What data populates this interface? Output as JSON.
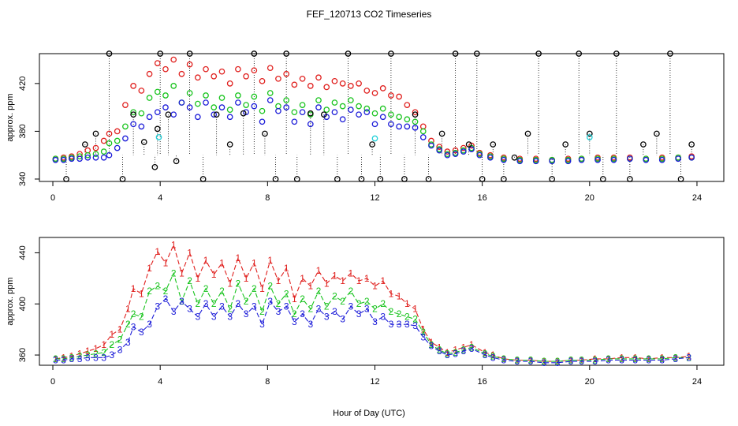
{
  "figure": {
    "title": "FEF_120713  CO2 Timeseries",
    "xlabel": "Hour of Day (UTC)"
  },
  "chart_data": [
    {
      "type": "scatter",
      "panel": "top",
      "title": "",
      "xlabel": "",
      "ylabel": "approx. ppm",
      "xlim": [
        -0.5,
        25
      ],
      "ylim": [
        338,
        445
      ],
      "xticks": [
        0,
        4,
        8,
        12,
        16,
        20,
        24
      ],
      "yticks": [
        340,
        380,
        420
      ],
      "series": [
        {
          "color": "#e0201e",
          "marker": "circle",
          "x": [
            0.1,
            0.4,
            0.7,
            1.0,
            1.3,
            1.6,
            1.9,
            2.1,
            2.4,
            2.7,
            3.0,
            3.3,
            3.6,
            3.9,
            4.2,
            4.5,
            4.8,
            5.1,
            5.4,
            5.7,
            6.0,
            6.3,
            6.6,
            6.9,
            7.2,
            7.5,
            7.8,
            8.1,
            8.4,
            8.7,
            9.0,
            9.3,
            9.6,
            9.9,
            10.2,
            10.5,
            10.8,
            11.1,
            11.4,
            11.7,
            12.0,
            12.3,
            12.6,
            12.9,
            13.2,
            13.5,
            13.8,
            14.1,
            14.4,
            14.7,
            15.0,
            15.3,
            15.6,
            15.9,
            16.3,
            16.8,
            17.4,
            18.0,
            18.6,
            19.2,
            19.7,
            20.3,
            20.9,
            21.5,
            22.1,
            22.7,
            23.3,
            23.8
          ],
          "y": [
            357,
            358,
            359,
            361,
            364,
            366,
            372,
            378,
            380,
            402,
            418,
            414,
            428,
            437,
            432,
            440,
            428,
            436,
            425,
            432,
            426,
            430,
            420,
            432,
            426,
            431,
            422,
            433,
            424,
            428,
            419,
            424,
            418,
            425,
            417,
            422,
            420,
            418,
            420,
            414,
            412,
            416,
            410,
            409,
            402,
            396,
            384,
            372,
            367,
            363,
            364,
            366,
            368,
            362,
            360,
            358,
            357,
            357,
            356,
            357,
            357,
            358,
            358,
            358,
            357,
            358,
            358,
            359
          ]
        },
        {
          "color": "#19c41e",
          "marker": "circle",
          "x": [
            0.1,
            0.4,
            0.7,
            1.0,
            1.3,
            1.6,
            1.9,
            2.1,
            2.4,
            2.7,
            3.0,
            3.3,
            3.6,
            3.9,
            4.2,
            4.5,
            4.8,
            5.1,
            5.4,
            5.7,
            6.0,
            6.3,
            6.6,
            6.9,
            7.2,
            7.5,
            7.8,
            8.1,
            8.4,
            8.7,
            9.0,
            9.3,
            9.6,
            9.9,
            10.2,
            10.5,
            10.8,
            11.1,
            11.4,
            11.7,
            12.0,
            12.3,
            12.6,
            12.9,
            13.2,
            13.5,
            13.8,
            14.1,
            14.4,
            14.7,
            15.0,
            15.3,
            15.6,
            15.9,
            16.3,
            16.8,
            17.4,
            18.0,
            18.6,
            19.2,
            19.7,
            20.3,
            20.9,
            21.5,
            22.1,
            22.7,
            23.3,
            23.8
          ],
          "y": [
            357,
            357,
            358,
            359,
            360,
            361,
            363,
            370,
            372,
            384,
            396,
            395,
            408,
            413,
            410,
            418,
            404,
            412,
            403,
            410,
            400,
            408,
            398,
            410,
            402,
            409,
            397,
            412,
            401,
            406,
            396,
            402,
            394,
            406,
            398,
            404,
            401,
            406,
            401,
            399,
            395,
            399,
            394,
            392,
            390,
            388,
            380,
            369,
            365,
            361,
            362,
            364,
            366,
            361,
            359,
            357,
            356,
            356,
            356,
            356,
            357,
            357,
            357,
            357,
            357,
            357,
            358,
            358
          ]
        },
        {
          "color": "#1c1cd8",
          "marker": "circle",
          "x": [
            0.1,
            0.4,
            0.7,
            1.0,
            1.3,
            1.6,
            1.9,
            2.1,
            2.4,
            2.7,
            3.0,
            3.3,
            3.6,
            3.9,
            4.2,
            4.5,
            4.8,
            5.1,
            5.4,
            5.7,
            6.0,
            6.3,
            6.6,
            6.9,
            7.2,
            7.5,
            7.8,
            8.1,
            8.4,
            8.7,
            9.0,
            9.3,
            9.6,
            9.9,
            10.2,
            10.5,
            10.8,
            11.1,
            11.4,
            11.7,
            12.0,
            12.3,
            12.6,
            12.9,
            13.2,
            13.5,
            13.8,
            14.1,
            14.4,
            14.7,
            15.0,
            15.3,
            15.6,
            15.9,
            16.3,
            16.8,
            17.4,
            18.0,
            18.6,
            19.2,
            19.7,
            20.3,
            20.9,
            21.5,
            22.1,
            22.7,
            23.3,
            23.8
          ],
          "y": [
            356,
            356,
            357,
            357,
            358,
            358,
            358,
            360,
            366,
            374,
            386,
            384,
            392,
            396,
            400,
            394,
            404,
            400,
            392,
            404,
            394,
            400,
            392,
            404,
            396,
            401,
            388,
            406,
            397,
            400,
            388,
            396,
            386,
            400,
            392,
            396,
            390,
            398,
            394,
            396,
            386,
            392,
            386,
            384,
            384,
            383,
            375,
            368,
            364,
            360,
            361,
            363,
            365,
            360,
            358,
            356,
            355,
            355,
            355,
            355,
            356,
            356,
            356,
            357,
            356,
            356,
            357,
            358
          ]
        },
        {
          "color": "#000000",
          "marker": "circle",
          "x": [
            0.5,
            1.2,
            1.6,
            2.1,
            2.6,
            3.0,
            3.4,
            3.8,
            3.9,
            4.0,
            4.3,
            4.6,
            5.1,
            5.6,
            6.1,
            6.6,
            7.1,
            7.5,
            7.9,
            8.3,
            8.7,
            9.1,
            9.6,
            10.1,
            10.6,
            11.0,
            11.5,
            11.9,
            12.2,
            12.6,
            13.1,
            13.5,
            14.0,
            14.5,
            15.0,
            15.5,
            15.8,
            16.0,
            16.4,
            16.8,
            17.2,
            17.7,
            18.1,
            18.6,
            19.1,
            19.6,
            20.0,
            20.5,
            21.0,
            21.5,
            22.0,
            22.5,
            23.0,
            23.4,
            23.8
          ],
          "y": [
            340,
            369,
            378,
            445,
            340,
            394,
            371,
            350,
            382,
            445,
            394,
            355,
            445,
            340,
            394,
            369,
            395,
            445,
            378,
            340,
            445,
            340,
            395,
            394,
            340,
            445,
            340,
            369,
            340,
            445,
            340,
            394,
            340,
            378,
            445,
            369,
            445,
            340,
            369,
            340,
            358,
            378,
            445,
            340,
            369,
            445,
            378,
            340,
            445,
            340,
            369,
            378,
            445,
            340,
            369
          ]
        },
        {
          "color": "#22d0d8",
          "marker": "circle",
          "x": [
            3.95,
            12.0,
            20.0
          ],
          "y": [
            375,
            374,
            375
          ]
        }
      ]
    },
    {
      "type": "line",
      "panel": "bottom",
      "title": "",
      "xlabel": "Hour of Day (UTC)",
      "ylabel": "approx. ppm",
      "xlim": [
        -0.5,
        25
      ],
      "ylim": [
        352,
        452
      ],
      "xticks": [
        0,
        4,
        8,
        12,
        16,
        20,
        24
      ],
      "yticks": [
        360,
        400,
        440
      ],
      "series": [
        {
          "name": "1",
          "color": "#e0201e",
          "x": [
            0.1,
            0.4,
            0.7,
            1.0,
            1.3,
            1.6,
            1.9,
            2.2,
            2.5,
            2.8,
            3.0,
            3.3,
            3.6,
            3.9,
            4.2,
            4.5,
            4.8,
            5.1,
            5.4,
            5.7,
            6.0,
            6.3,
            6.6,
            6.9,
            7.2,
            7.5,
            7.8,
            8.1,
            8.4,
            8.7,
            9.0,
            9.3,
            9.6,
            9.9,
            10.2,
            10.5,
            10.8,
            11.1,
            11.4,
            11.7,
            12.0,
            12.3,
            12.6,
            12.9,
            13.2,
            13.5,
            13.8,
            14.1,
            14.4,
            14.7,
            15.0,
            15.3,
            15.6,
            16.1,
            16.4,
            16.8,
            17.3,
            17.8,
            18.3,
            18.8,
            19.3,
            19.7,
            20.2,
            20.7,
            21.2,
            21.7,
            22.2,
            22.7,
            23.2,
            23.7
          ],
          "y": [
            357,
            358,
            359,
            361,
            363,
            365,
            368,
            376,
            380,
            396,
            412,
            408,
            428,
            441,
            432,
            446,
            424,
            440,
            420,
            434,
            423,
            432,
            416,
            436,
            420,
            432,
            412,
            434,
            418,
            428,
            404,
            420,
            414,
            426,
            416,
            422,
            418,
            424,
            418,
            420,
            414,
            418,
            408,
            406,
            400,
            396,
            380,
            370,
            366,
            362,
            364,
            366,
            368,
            362,
            360,
            357,
            356,
            356,
            355,
            355,
            356,
            356,
            357,
            357,
            358,
            358,
            357,
            358,
            358,
            359
          ]
        },
        {
          "name": "2",
          "color": "#19c41e",
          "x": [
            0.1,
            0.4,
            0.7,
            1.0,
            1.3,
            1.6,
            1.9,
            2.2,
            2.5,
            2.8,
            3.0,
            3.3,
            3.6,
            3.9,
            4.2,
            4.5,
            4.8,
            5.1,
            5.4,
            5.7,
            6.0,
            6.3,
            6.6,
            6.9,
            7.2,
            7.5,
            7.8,
            8.1,
            8.4,
            8.7,
            9.0,
            9.3,
            9.6,
            9.9,
            10.2,
            10.5,
            10.8,
            11.1,
            11.4,
            11.7,
            12.0,
            12.3,
            12.6,
            12.9,
            13.2,
            13.5,
            13.8,
            14.1,
            14.4,
            14.7,
            15.0,
            15.3,
            15.6,
            16.1,
            16.4,
            16.8,
            17.3,
            17.8,
            18.3,
            18.8,
            19.3,
            19.7,
            20.2,
            20.7,
            21.2,
            21.7,
            22.2,
            22.7,
            23.2,
            23.7
          ],
          "y": [
            357,
            357,
            358,
            359,
            360,
            361,
            362,
            368,
            372,
            384,
            392,
            390,
            410,
            414,
            410,
            424,
            402,
            418,
            400,
            412,
            400,
            410,
            396,
            416,
            402,
            412,
            394,
            414,
            400,
            408,
            392,
            404,
            396,
            410,
            398,
            406,
            402,
            410,
            400,
            402,
            396,
            400,
            394,
            392,
            390,
            388,
            378,
            368,
            364,
            361,
            362,
            364,
            366,
            361,
            359,
            357,
            356,
            356,
            355,
            355,
            356,
            356,
            356,
            357,
            357,
            357,
            357,
            357,
            358,
            358
          ]
        },
        {
          "name": "3",
          "color": "#1c1cd8",
          "x": [
            0.1,
            0.4,
            0.7,
            1.0,
            1.3,
            1.6,
            1.9,
            2.2,
            2.5,
            2.8,
            3.0,
            3.3,
            3.6,
            3.9,
            4.2,
            4.5,
            4.8,
            5.1,
            5.4,
            5.7,
            6.0,
            6.3,
            6.6,
            6.9,
            7.2,
            7.5,
            7.8,
            8.1,
            8.4,
            8.7,
            9.0,
            9.3,
            9.6,
            9.9,
            10.2,
            10.5,
            10.8,
            11.1,
            11.4,
            11.7,
            12.0,
            12.3,
            12.6,
            12.9,
            13.2,
            13.5,
            13.8,
            14.1,
            14.4,
            14.7,
            15.0,
            15.3,
            15.6,
            16.1,
            16.4,
            16.8,
            17.3,
            17.8,
            18.3,
            18.8,
            19.3,
            19.7,
            20.2,
            20.7,
            21.2,
            21.7,
            22.2,
            22.7,
            23.2,
            23.7
          ],
          "y": [
            356,
            356,
            357,
            357,
            358,
            358,
            358,
            360,
            364,
            370,
            382,
            378,
            384,
            398,
            404,
            394,
            402,
            396,
            390,
            400,
            390,
            398,
            390,
            400,
            392,
            398,
            384,
            402,
            394,
            398,
            386,
            392,
            384,
            396,
            390,
            394,
            388,
            398,
            392,
            396,
            386,
            390,
            384,
            384,
            384,
            383,
            374,
            367,
            363,
            360,
            361,
            363,
            365,
            360,
            358,
            356,
            355,
            355,
            354,
            354,
            355,
            355,
            355,
            356,
            356,
            356,
            356,
            356,
            357,
            358
          ]
        }
      ]
    }
  ]
}
